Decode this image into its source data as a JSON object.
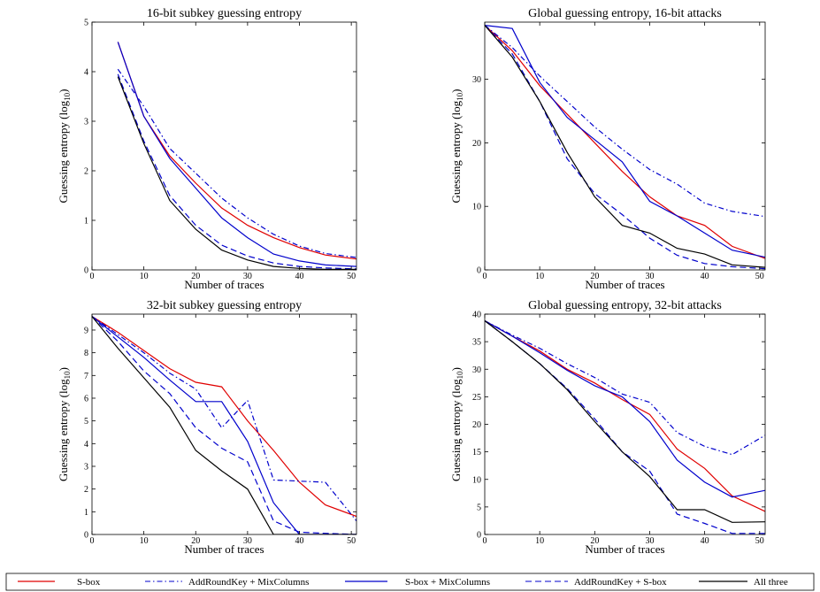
{
  "legend": {
    "placement": "bottom",
    "entries": [
      {
        "name": "S-box",
        "color": "#e00000",
        "dash": "solid"
      },
      {
        "name": "AddRoundKey + MixColumns",
        "color": "#0000cc",
        "dash": "dashdot"
      },
      {
        "name": "S-box + MixColumns",
        "color": "#0000cc",
        "dash": "solid"
      },
      {
        "name": "AddRoundKey + S-box",
        "color": "#0000cc",
        "dash": "dashed"
      },
      {
        "name": "All three",
        "color": "#000000",
        "dash": "solid"
      }
    ]
  },
  "chart_data": [
    {
      "type": "line",
      "title": "16-bit subkey guessing entropy",
      "xlabel": "Number of traces",
      "ylabel": "Guessing entropy (log",
      "ylabel_sub": "10",
      "ylabel_end": ")",
      "xlim": [
        0,
        51
      ],
      "ylim": [
        0,
        5
      ],
      "xticks": [
        0,
        10,
        20,
        30,
        40,
        50
      ],
      "yticks": [
        0,
        1,
        2,
        3,
        4,
        5
      ],
      "grid": false,
      "series": [
        {
          "name": "S-box",
          "x": [
            5,
            10,
            15,
            20,
            25,
            30,
            35,
            40,
            45,
            51
          ],
          "y": [
            4.6,
            3.1,
            2.3,
            1.75,
            1.25,
            0.9,
            0.65,
            0.45,
            0.3,
            0.22
          ]
        },
        {
          "name": "AddRoundKey + MixColumns",
          "x": [
            5,
            10,
            15,
            20,
            25,
            30,
            35,
            40,
            45,
            51
          ],
          "y": [
            4.05,
            3.3,
            2.45,
            1.95,
            1.45,
            1.05,
            0.72,
            0.48,
            0.33,
            0.25
          ]
        },
        {
          "name": "S-box + MixColumns",
          "x": [
            5,
            10,
            15,
            20,
            25,
            30,
            35,
            40,
            45,
            51
          ],
          "y": [
            4.6,
            3.1,
            2.25,
            1.65,
            1.05,
            0.65,
            0.32,
            0.18,
            0.1,
            0.07
          ]
        },
        {
          "name": "AddRoundKey + S-box",
          "x": [
            5,
            10,
            15,
            20,
            25,
            30,
            35,
            40,
            45,
            51
          ],
          "y": [
            3.95,
            2.6,
            1.5,
            0.9,
            0.5,
            0.28,
            0.14,
            0.07,
            0.04,
            0.02
          ]
        },
        {
          "name": "All three",
          "x": [
            5,
            10,
            15,
            20,
            25,
            30,
            35,
            40,
            45,
            51
          ],
          "y": [
            3.9,
            2.55,
            1.4,
            0.82,
            0.4,
            0.2,
            0.07,
            0.03,
            0.01,
            0.01
          ]
        }
      ]
    },
    {
      "type": "line",
      "title": "Global guessing entropy, 16-bit attacks",
      "xlabel": "Number of traces",
      "ylabel": "Guessing entropy (log",
      "ylabel_sub": "10",
      "ylabel_end": ")",
      "xlim": [
        0,
        51
      ],
      "ylim": [
        0,
        39
      ],
      "xticks": [
        0,
        10,
        20,
        30,
        40,
        50
      ],
      "yticks": [
        0,
        10,
        20,
        30
      ],
      "grid": false,
      "series": [
        {
          "name": "S-box",
          "x": [
            0,
            5,
            10,
            15,
            20,
            25,
            30,
            35,
            40,
            45,
            51
          ],
          "y": [
            38.5,
            34.5,
            29,
            24.5,
            20,
            15.5,
            11.5,
            8.5,
            7,
            3.7,
            1.8
          ]
        },
        {
          "name": "AddRoundKey + MixColumns",
          "x": [
            0,
            5,
            10,
            15,
            20,
            25,
            30,
            35,
            40,
            45,
            51
          ],
          "y": [
            38.5,
            35,
            30.5,
            26.5,
            22.5,
            19,
            15.8,
            13.5,
            10.5,
            9.2,
            8.4
          ]
        },
        {
          "name": "S-box + MixColumns",
          "x": [
            0,
            5,
            10,
            15,
            20,
            25,
            30,
            35,
            40,
            45,
            51
          ],
          "y": [
            38.5,
            38,
            29.5,
            24,
            20.5,
            17,
            10.8,
            8.5,
            5.8,
            3.1,
            2
          ]
        },
        {
          "name": "AddRoundKey + S-box",
          "x": [
            0,
            5,
            10,
            15,
            20,
            25,
            30,
            35,
            40,
            45,
            51
          ],
          "y": [
            38.5,
            34,
            26.5,
            17.5,
            12,
            8.7,
            5,
            2.3,
            1,
            0.5,
            0.2
          ]
        },
        {
          "name": "All three",
          "x": [
            0,
            5,
            10,
            15,
            20,
            25,
            30,
            35,
            40,
            45,
            51
          ],
          "y": [
            38.5,
            33.5,
            26.5,
            18.5,
            11.5,
            7,
            5.8,
            3.4,
            2.5,
            0.8,
            0.4
          ]
        }
      ]
    },
    {
      "type": "line",
      "title": "32-bit subkey guessing entropy",
      "xlabel": "Number of traces",
      "ylabel": "Guessing entropy (log",
      "ylabel_sub": "10",
      "ylabel_end": ")",
      "xlim": [
        0,
        51
      ],
      "ylim": [
        0,
        9.7
      ],
      "xticks": [
        0,
        10,
        20,
        30,
        40,
        50
      ],
      "yticks": [
        0,
        1,
        2,
        3,
        4,
        5,
        6,
        7,
        8,
        9
      ],
      "grid": false,
      "series": [
        {
          "name": "S-box",
          "x": [
            0,
            5,
            10,
            15,
            20,
            25,
            30,
            35,
            40,
            45,
            51
          ],
          "y": [
            9.6,
            8.9,
            8.1,
            7.3,
            6.7,
            6.5,
            5,
            3.7,
            2.3,
            1.3,
            0.8
          ]
        },
        {
          "name": "AddRoundKey + MixColumns",
          "x": [
            0,
            5,
            10,
            15,
            20,
            25,
            30,
            35,
            40,
            45,
            51
          ],
          "y": [
            9.6,
            8.8,
            8,
            7.1,
            6.4,
            4.7,
            5.9,
            2.4,
            2.35,
            2.3,
            0.6
          ]
        },
        {
          "name": "S-box + MixColumns",
          "x": [
            0,
            5,
            10,
            15,
            20,
            25,
            30,
            35,
            40,
            45,
            51
          ],
          "y": [
            9.6,
            8.7,
            7.8,
            6.8,
            5.85,
            5.85,
            4.1,
            1.4,
            0,
            0,
            0
          ]
        },
        {
          "name": "AddRoundKey + S-box",
          "x": [
            0,
            5,
            10,
            15,
            20,
            25,
            30,
            35,
            40,
            45,
            51
          ],
          "y": [
            9.6,
            8.5,
            7.2,
            6.2,
            4.7,
            3.8,
            3.2,
            0.6,
            0.1,
            0.05,
            0
          ]
        },
        {
          "name": "All three",
          "x": [
            0,
            5,
            10,
            15,
            20,
            25,
            30,
            35,
            40,
            45,
            51
          ],
          "y": [
            9.6,
            8.2,
            6.9,
            5.6,
            3.7,
            2.8,
            2,
            0,
            0,
            0,
            0
          ]
        }
      ]
    },
    {
      "type": "line",
      "title": "Global guessing entropy, 32-bit attacks",
      "xlabel": "Number of traces",
      "ylabel": "Guessing entropy (log",
      "ylabel_sub": "10",
      "ylabel_end": ")",
      "xlim": [
        0,
        51
      ],
      "ylim": [
        0,
        40
      ],
      "xticks": [
        0,
        10,
        20,
        30,
        40,
        50
      ],
      "yticks": [
        0,
        5,
        10,
        15,
        20,
        25,
        30,
        35,
        40
      ],
      "grid": false,
      "series": [
        {
          "name": "S-box",
          "x": [
            0,
            5,
            10,
            15,
            20,
            25,
            30,
            35,
            40,
            45,
            51
          ],
          "y": [
            38.8,
            36,
            33.3,
            30,
            27.5,
            24.5,
            21.8,
            15.5,
            12,
            7,
            4.2
          ]
        },
        {
          "name": "AddRoundKey + MixColumns",
          "x": [
            0,
            5,
            10,
            15,
            20,
            25,
            30,
            35,
            40,
            45,
            51
          ],
          "y": [
            38.8,
            36.2,
            33.8,
            31,
            28.5,
            25.5,
            24,
            18.5,
            16,
            14.5,
            18
          ]
        },
        {
          "name": "S-box + MixColumns",
          "x": [
            0,
            5,
            10,
            15,
            20,
            25,
            30,
            35,
            40,
            45,
            51
          ],
          "y": [
            38.8,
            36,
            33,
            29.8,
            27,
            25,
            20.5,
            13.5,
            9.5,
            6.8,
            8
          ]
        },
        {
          "name": "AddRoundKey + S-box",
          "x": [
            0,
            5,
            10,
            15,
            20,
            25,
            30,
            35,
            40,
            45,
            51
          ],
          "y": [
            38.8,
            35,
            31,
            26.5,
            21,
            15,
            11.5,
            3.7,
            2,
            0.2,
            0.2
          ]
        },
        {
          "name": "All three",
          "x": [
            0,
            5,
            10,
            15,
            20,
            25,
            30,
            35,
            40,
            45,
            51
          ],
          "y": [
            38.8,
            35,
            31,
            26.3,
            20.5,
            15,
            10.5,
            4.5,
            4.5,
            2.2,
            2.3
          ]
        }
      ]
    }
  ]
}
